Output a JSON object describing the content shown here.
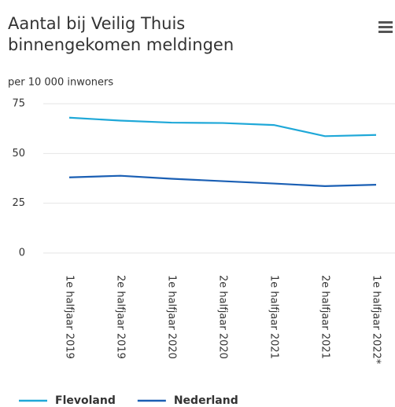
{
  "chart_data": {
    "type": "line",
    "title_lines": [
      "Aantal bij Veilig Thuis",
      "binnengekomen meldingen"
    ],
    "y_axis_label": "per 10 000 inwoners",
    "categories": [
      "1e halfjaar 2019",
      "2e halfjaar 2019",
      "1e halfjaar 2020",
      "2e halfjaar 2020",
      "1e halfjaar 2021",
      "2e halfjaar 2021",
      "1e halfjaar 2022*"
    ],
    "series": [
      {
        "name": "Flevoland",
        "color": "#1fa8d8",
        "values": [
          68,
          66.5,
          65.5,
          65.3,
          64.3,
          58.7,
          59.3
        ]
      },
      {
        "name": "Nederland",
        "color": "#1a5fb4",
        "values": [
          38,
          38.8,
          37.3,
          36.1,
          34.9,
          33.6,
          34.3
        ]
      }
    ],
    "ylim": [
      0,
      75
    ],
    "yticks": [
      0,
      25,
      50,
      75
    ],
    "grid": true
  }
}
